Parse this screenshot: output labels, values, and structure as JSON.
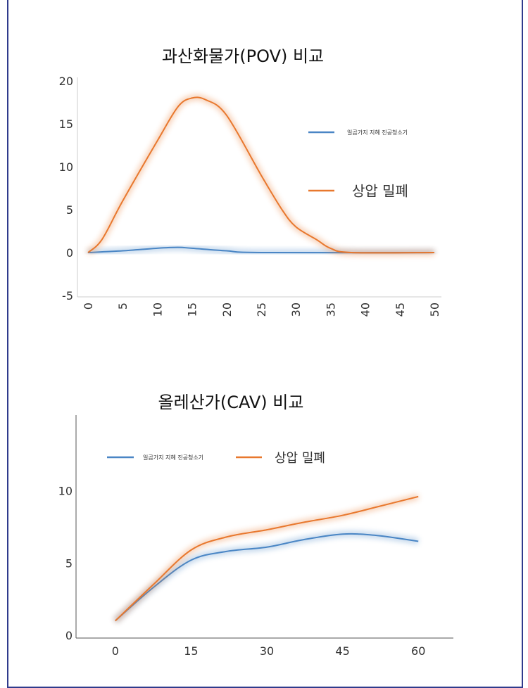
{
  "colors": {
    "series1": "#4a86c5",
    "series2": "#e8782e",
    "frame": "#2f3b8c"
  },
  "chart_data": [
    {
      "type": "line",
      "title": "과산화물가(POV) 비교",
      "xlim": [
        0,
        50
      ],
      "ylim": [
        -5,
        20
      ],
      "xticks": [
        "0",
        "5",
        "10",
        "15",
        "20",
        "25",
        "30",
        "35",
        "40",
        "45",
        "50"
      ],
      "yticks": [
        "20",
        "15",
        "10",
        "5",
        "0",
        "-5"
      ],
      "legend": "right",
      "series": [
        {
          "name": "일곱가지 지혜 진공청소기",
          "x": [
            0,
            5,
            10,
            13,
            15,
            20,
            25,
            50
          ],
          "y": [
            0,
            0.2,
            0.5,
            0.6,
            0.5,
            0.2,
            0,
            0
          ]
        },
        {
          "name": "상압 밀폐",
          "x": [
            0,
            2,
            5,
            10,
            13,
            15,
            17,
            20,
            25,
            28,
            30,
            33,
            35,
            38,
            50
          ],
          "y": [
            0,
            1.5,
            6,
            13,
            17,
            18,
            17.8,
            16,
            9,
            5,
            3,
            1.5,
            0.5,
            0,
            0
          ]
        }
      ]
    },
    {
      "type": "line",
      "title": "올레산가(CAV) 비교",
      "xlim": [
        -7.5,
        67.5
      ],
      "ylim": [
        0,
        15
      ],
      "xticks": [
        "0",
        "15",
        "30",
        "45",
        "60"
      ],
      "yticks": [
        "10",
        "5",
        "0"
      ],
      "legend": "top",
      "series": [
        {
          "name": "일곱가지 지혜 진공청소기",
          "x": [
            0,
            7.5,
            15,
            22,
            30,
            37,
            45,
            52,
            60
          ],
          "y": [
            1,
            3.3,
            5.2,
            5.8,
            6.1,
            6.6,
            7,
            6.9,
            6.5
          ]
        },
        {
          "name": "상압 밀폐",
          "x": [
            0,
            7.5,
            15,
            22,
            30,
            37,
            45,
            52,
            60
          ],
          "y": [
            1,
            3.5,
            5.9,
            6.8,
            7.3,
            7.8,
            8.3,
            8.9,
            9.6
          ]
        }
      ]
    }
  ]
}
